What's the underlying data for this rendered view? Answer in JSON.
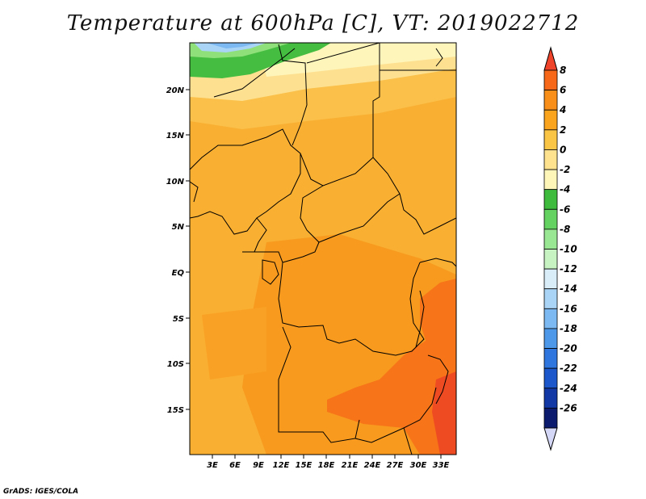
{
  "title": "Temperature at 600hPa [C], VT: 2019022712",
  "credit": "GrADS: IGES/COLA",
  "lat_labels": [
    "20N",
    "15N",
    "10N",
    "5N",
    "EQ",
    "5S",
    "10S",
    "15S"
  ],
  "lon_labels": [
    "3E",
    "6E",
    "9E",
    "12E",
    "15E",
    "18E",
    "21E",
    "24E",
    "27E",
    "30E",
    "33E"
  ],
  "colorbar": {
    "labels": [
      "8",
      "6",
      "4",
      "2",
      "0",
      "-2",
      "-4",
      "-6",
      "-8",
      "-10",
      "-12",
      "-14",
      "-16",
      "-18",
      "-20",
      "-22",
      "-24",
      "-26"
    ],
    "colors": [
      "#f0442a",
      "#f76818",
      "#f98f18",
      "#faa41e",
      "#fac445",
      "#fee28e",
      "#fef5b9",
      "#3eba3c",
      "#64d261",
      "#99e792",
      "#c6f3c1",
      "#d8edf8",
      "#aad4f5",
      "#7cb8f1",
      "#4e98ea",
      "#2f76df",
      "#1c57cc",
      "#1238a6",
      "#0c1b6e",
      "#d4d8f6"
    ]
  }
}
